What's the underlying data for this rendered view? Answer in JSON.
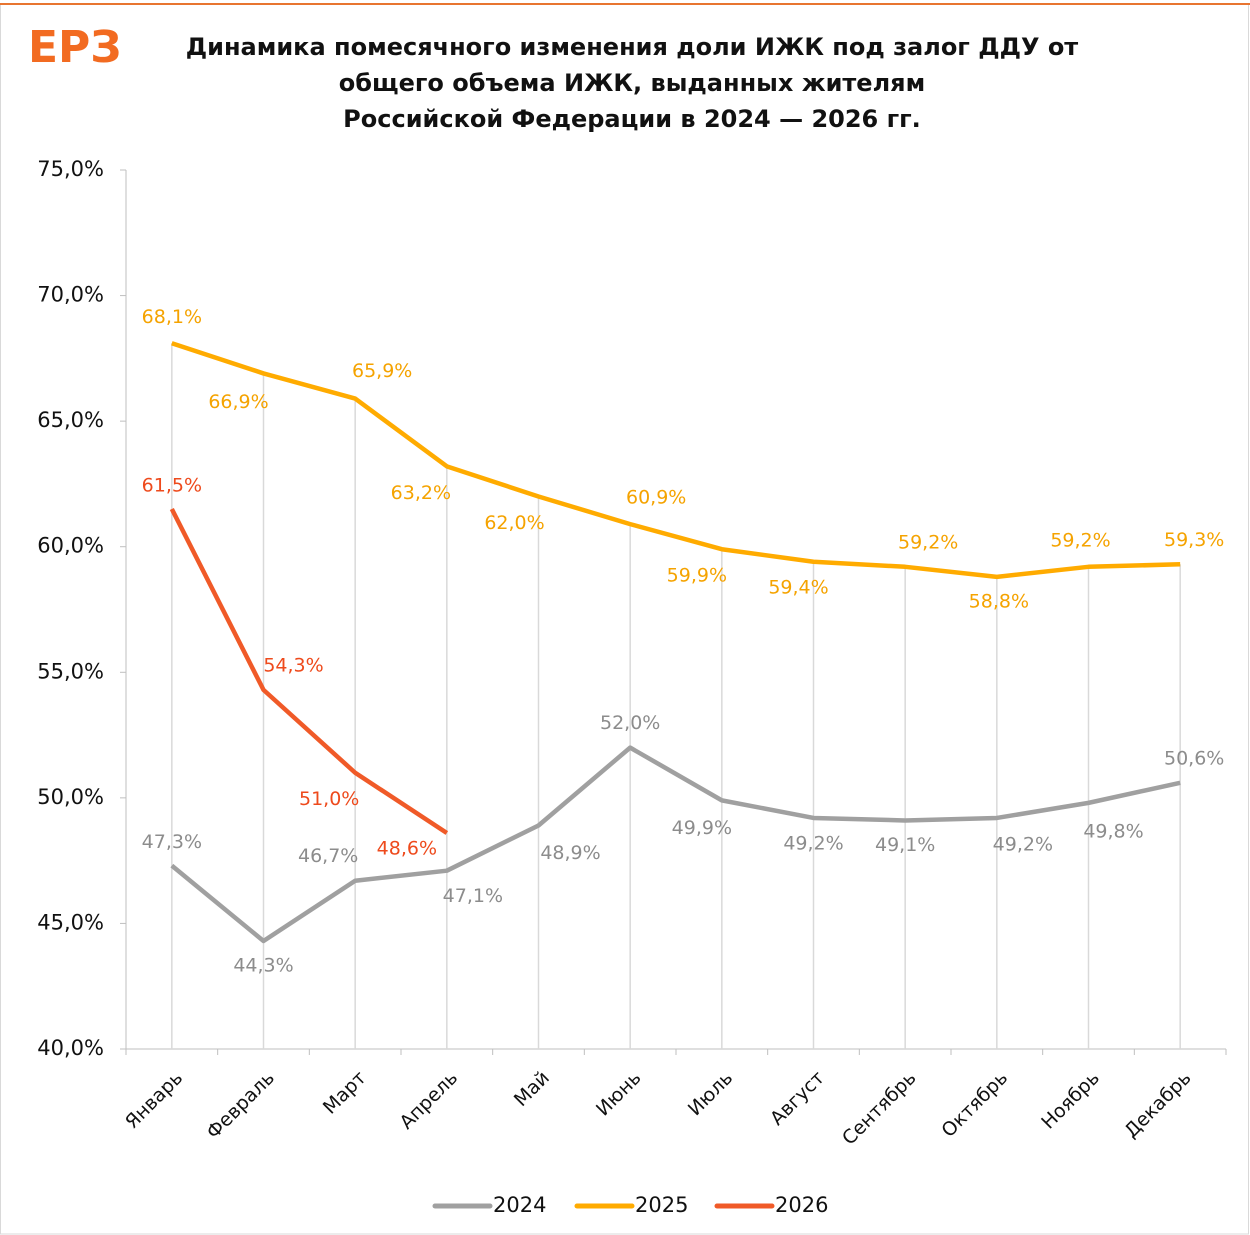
{
  "logo": "ЕРЗ",
  "chart_data": {
    "type": "line",
    "title": [
      "Динамика помесячного изменения доли ИЖК под залог ДДУ от",
      "общего объема ИЖК, выданных жителям",
      "Российской Федерации  в 2024 — 2026 гг."
    ],
    "categories": [
      "Январь",
      "Февраль",
      "Март",
      "Апрель",
      "Май",
      "Июнь",
      "Июль",
      "Август",
      "Сентябрь",
      "Октябрь",
      "Ноябрь",
      "Декабрь"
    ],
    "series": [
      {
        "name": "2024",
        "color": "#a0a0a0",
        "label_color": "#8c8c8c",
        "values": [
          47.3,
          44.3,
          46.7,
          47.1,
          48.9,
          52.0,
          49.9,
          49.2,
          49.1,
          49.2,
          49.8,
          50.6
        ],
        "value_labels": [
          "47,3%",
          "44,3%",
          "46,7%",
          "47,1%",
          "48,9%",
          "52,0%",
          "49,9%",
          "49,2%",
          "49,1%",
          "49,2%",
          "49,8%",
          "50,6%"
        ]
      },
      {
        "name": "2025",
        "color": "#ffab00",
        "label_color": "#f5a300",
        "values": [
          68.1,
          66.9,
          65.9,
          63.2,
          62.0,
          60.9,
          59.9,
          59.4,
          59.2,
          58.8,
          59.2,
          59.3
        ],
        "value_labels": [
          "68,1%",
          "66,9%",
          "65,9%",
          "63,2%",
          "62,0%",
          "60,9%",
          "59,9%",
          "59,4%",
          "59,2%",
          "58,8%",
          "59,2%",
          "59,3%"
        ]
      },
      {
        "name": "2026",
        "color": "#f05a28",
        "label_color": "#ee4a1c",
        "values": [
          61.5,
          54.3,
          51.0,
          48.6,
          null,
          null,
          null,
          null,
          null,
          null,
          null,
          null
        ],
        "value_labels": [
          "61,5%",
          "54,3%",
          "51,0%",
          "48,6%",
          null,
          null,
          null,
          null,
          null,
          null,
          null,
          null
        ]
      }
    ],
    "ylim": [
      40,
      75
    ],
    "yticks": [
      {
        "value": 40,
        "label": "40,0%"
      },
      {
        "value": 45,
        "label": "45,0%"
      },
      {
        "value": 50,
        "label": "50,0%"
      },
      {
        "value": 55,
        "label": "55,0%"
      },
      {
        "value": 60,
        "label": "60,0%"
      },
      {
        "value": 65,
        "label": "65,0%"
      },
      {
        "value": 70,
        "label": "70,0%"
      },
      {
        "value": 75,
        "label": "75,0%"
      }
    ],
    "legend": "bottom"
  }
}
